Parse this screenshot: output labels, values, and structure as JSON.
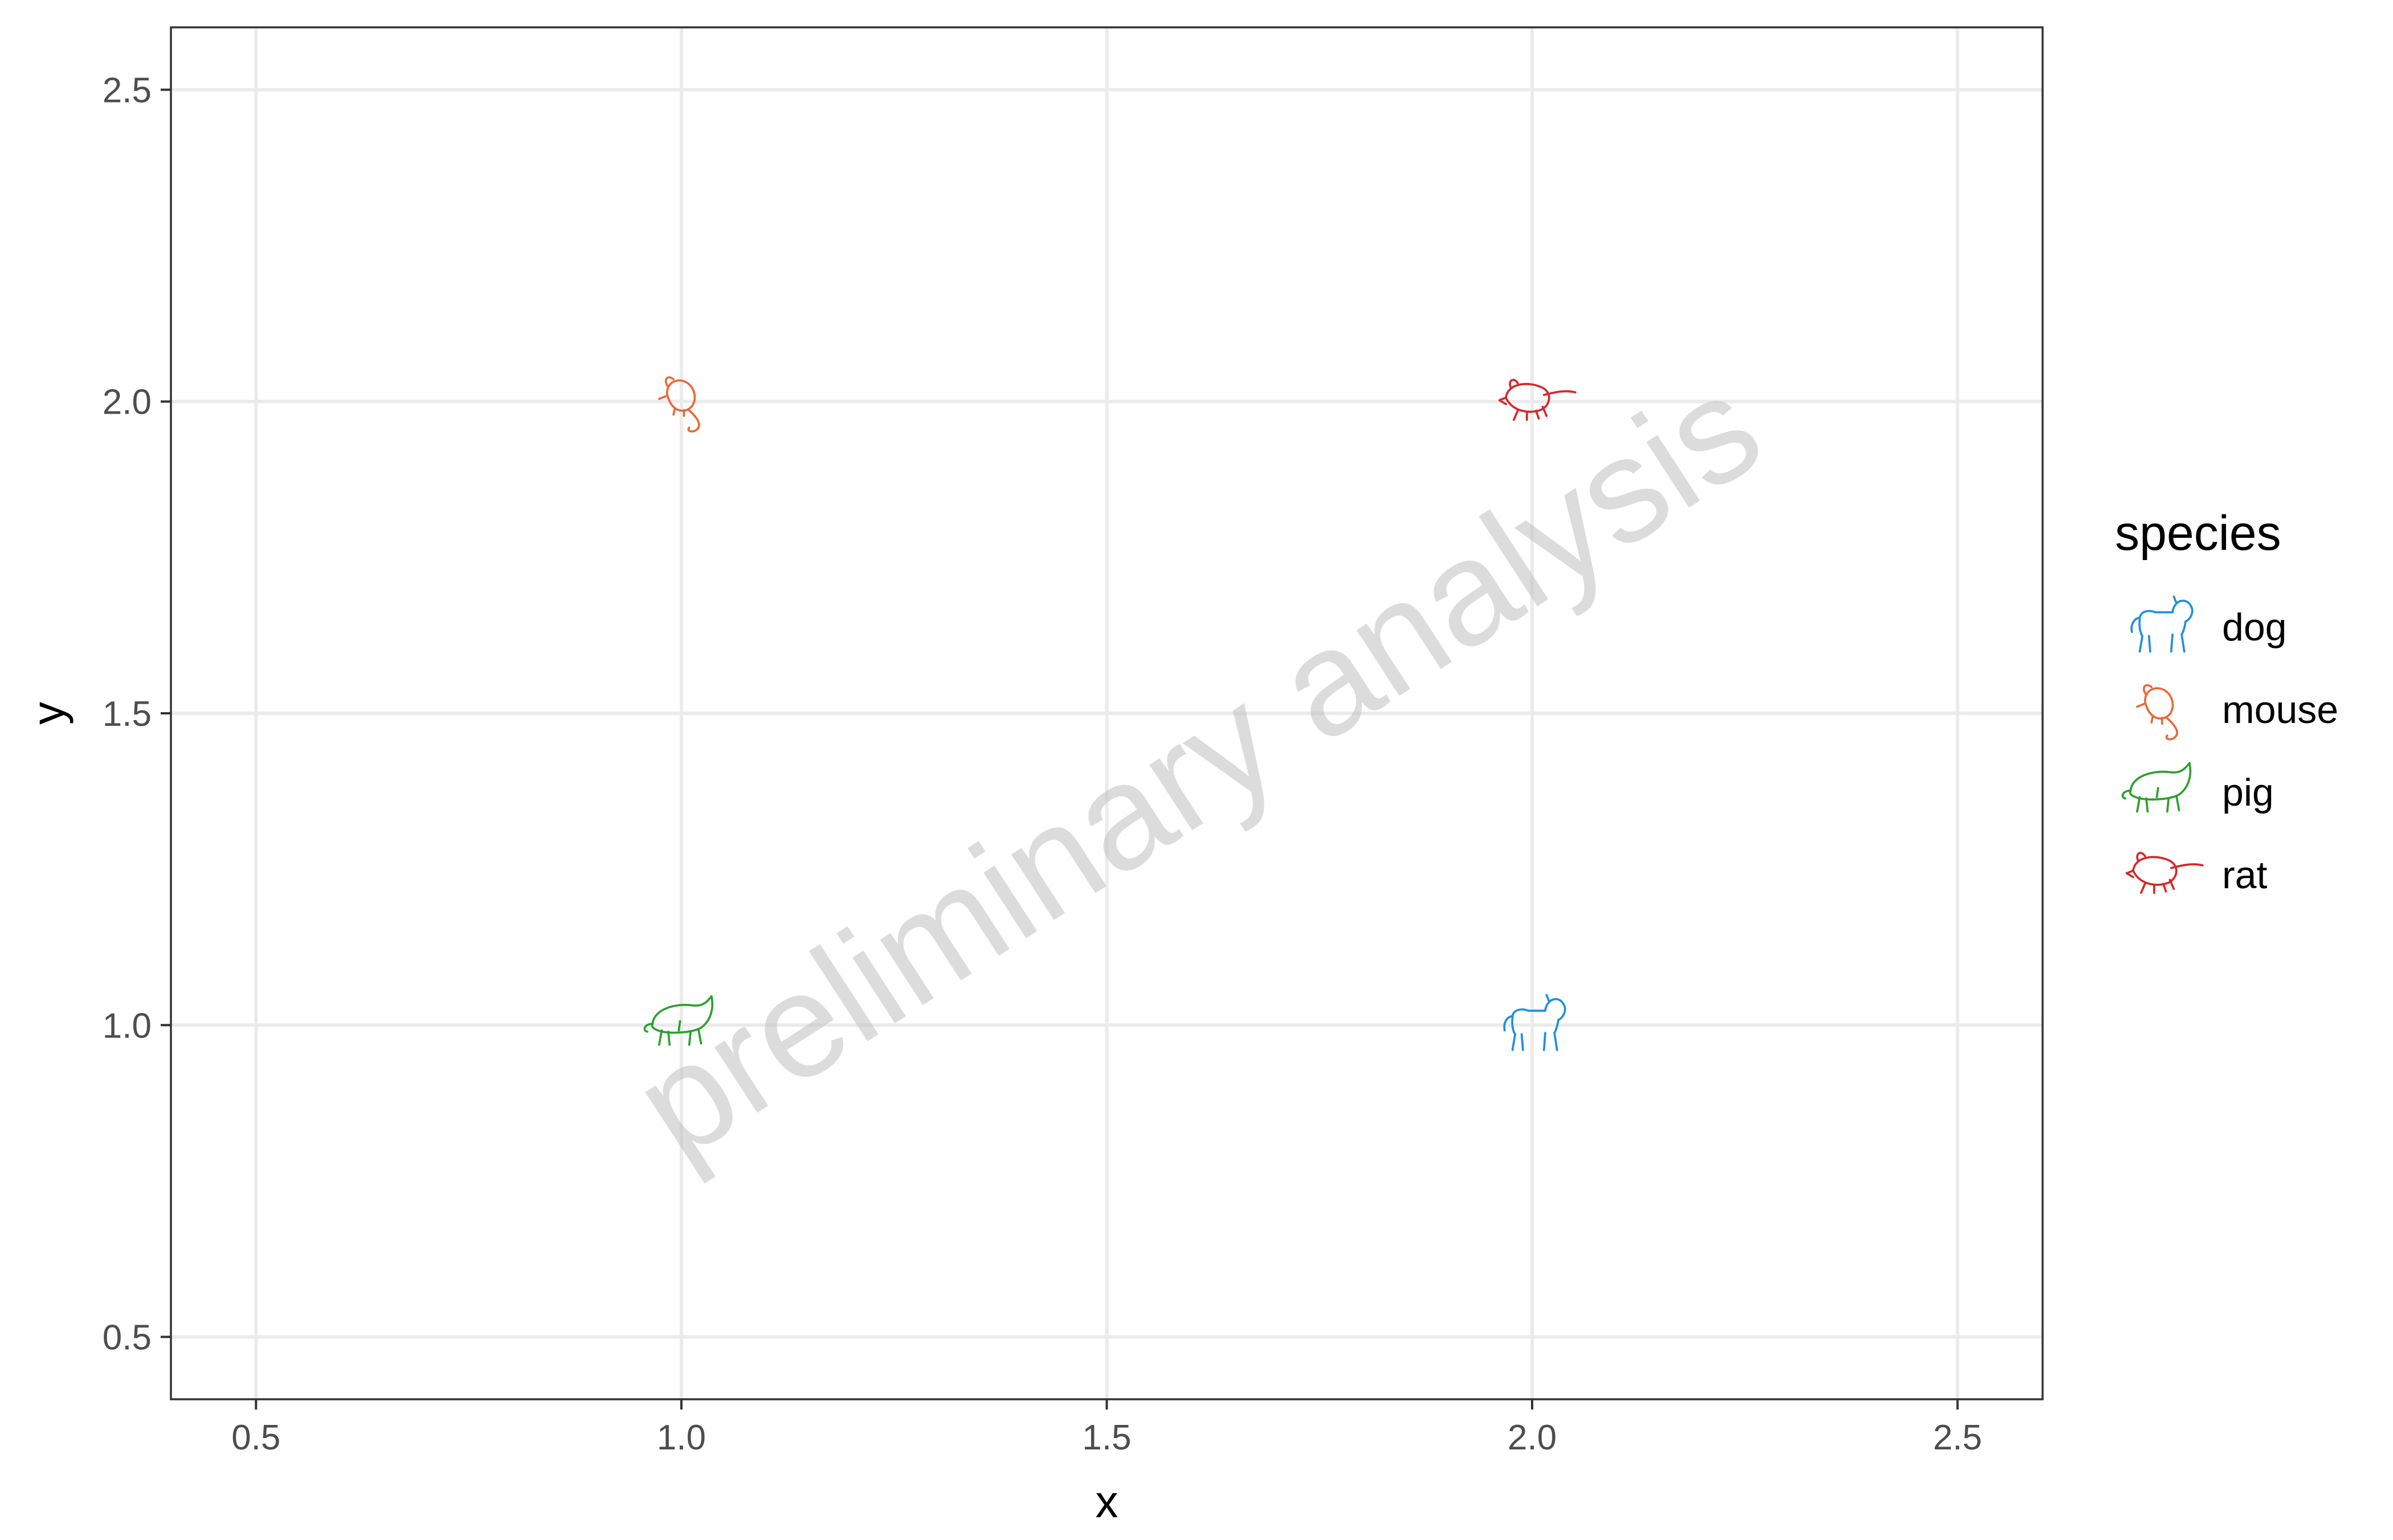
{
  "chart_data": {
    "type": "scatter",
    "xlabel": "x",
    "ylabel": "y",
    "xlim": [
      0.4,
      2.6
    ],
    "ylim": [
      0.4,
      2.6
    ],
    "x_ticks": [
      "0.5",
      "1.0",
      "1.5",
      "2.0",
      "2.5"
    ],
    "y_ticks": [
      "0.5",
      "1.0",
      "1.5",
      "2.0",
      "2.5"
    ],
    "x_tick_values": [
      0.5,
      1.0,
      1.5,
      2.0,
      2.5
    ],
    "y_tick_values": [
      0.5,
      1.0,
      1.5,
      2.0,
      2.5
    ],
    "grid": true,
    "legend": {
      "title": "species",
      "placement": "right",
      "entries": [
        {
          "label": "dog",
          "icon": "dog-icon",
          "color": "#1f8fe0"
        },
        {
          "label": "mouse",
          "icon": "mouse-icon",
          "color": "#e8693a"
        },
        {
          "label": "pig",
          "icon": "pig-icon",
          "color": "#2ca02c"
        },
        {
          "label": "rat",
          "icon": "rat-icon",
          "color": "#d62728"
        }
      ]
    },
    "points": [
      {
        "species": "mouse",
        "x": 1.0,
        "y": 2.0
      },
      {
        "species": "rat",
        "x": 2.0,
        "y": 2.0
      },
      {
        "species": "pig",
        "x": 1.0,
        "y": 1.0
      },
      {
        "species": "dog",
        "x": 2.0,
        "y": 1.0
      }
    ],
    "watermark": "preliminary analysis"
  }
}
